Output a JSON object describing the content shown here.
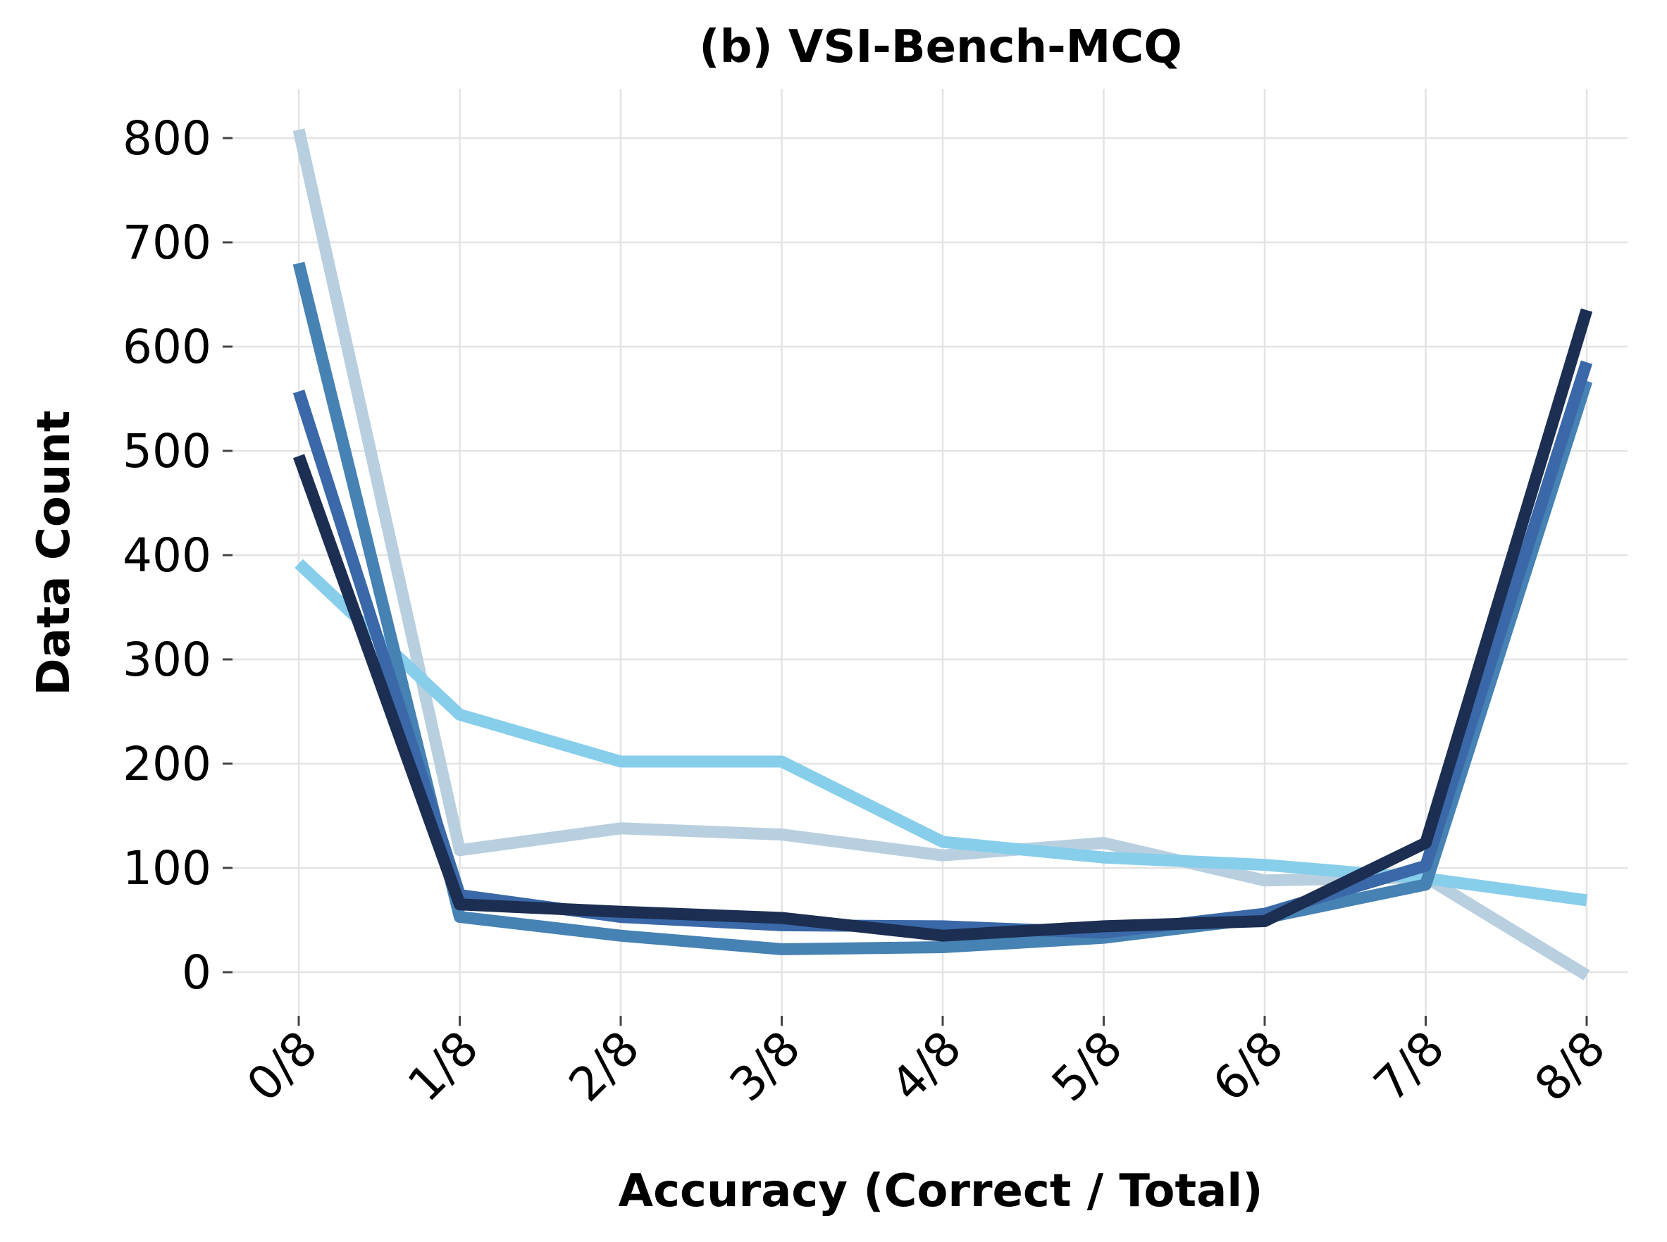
{
  "chart_data": {
    "type": "line",
    "title": "(b) VSI-Bench-MCQ",
    "xlabel": "Accuracy (Correct / Total)",
    "ylabel": "Data Count",
    "categories": [
      "0/8",
      "1/8",
      "2/8",
      "3/8",
      "4/8",
      "5/8",
      "6/8",
      "7/8",
      "8/8"
    ],
    "yticks": [
      0,
      100,
      200,
      300,
      400,
      500,
      600,
      700,
      800
    ],
    "ylim": [
      -45,
      845
    ],
    "grid": true,
    "legend": "none",
    "series": [
      {
        "color": "#b8cfe0",
        "values": [
          808,
          117,
          138,
          132,
          112,
          124,
          88,
          91,
          -3
        ]
      },
      {
        "color": "#87ceeb",
        "values": [
          392,
          247,
          202,
          202,
          125,
          110,
          103,
          90,
          69
        ]
      },
      {
        "color": "#4682b4",
        "values": [
          680,
          53,
          35,
          22,
          24,
          33,
          52,
          84,
          567
        ]
      },
      {
        "color": "#3a68a8",
        "values": [
          557,
          74,
          53,
          45,
          44,
          38,
          56,
          102,
          585
        ]
      },
      {
        "color": "#1c2e52",
        "values": [
          495,
          65,
          58,
          52,
          35,
          44,
          49,
          124,
          635
        ]
      }
    ]
  }
}
